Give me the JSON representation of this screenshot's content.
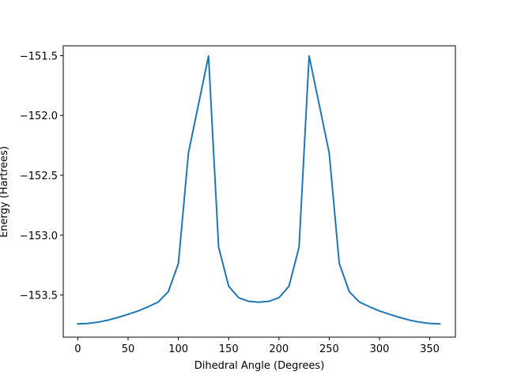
{
  "chart_data": {
    "type": "line",
    "title": "",
    "xlabel": "Dihedral Angle (Degrees)",
    "ylabel": "Energy (Hartrees)",
    "xlim": [
      -14.5,
      375.5
    ],
    "ylim": [
      -153.852,
      -151.418
    ],
    "xticks": [
      0,
      50,
      100,
      150,
      200,
      250,
      300,
      350
    ],
    "yticks": [
      -153.5,
      -153.0,
      -152.5,
      -152.0,
      -151.5
    ],
    "xtick_labels": [
      "0",
      "50",
      "100",
      "150",
      "200",
      "250",
      "300",
      "350"
    ],
    "ytick_labels": [
      "−153.5",
      "−153.0",
      "−152.5",
      "−152.0",
      "−151.5"
    ],
    "grid": false,
    "series": [
      {
        "color": "#1f77b4",
        "x": [
          0,
          10,
          20,
          30,
          40,
          50,
          60,
          70,
          80,
          90,
          100,
          110,
          120,
          130,
          140,
          150,
          160,
          170,
          180,
          190,
          200,
          210,
          220,
          230,
          240,
          250,
          260,
          270,
          280,
          290,
          300,
          310,
          320,
          330,
          340,
          350,
          360
        ],
        "y": [
          -153.741,
          -153.737,
          -153.727,
          -153.71,
          -153.687,
          -153.661,
          -153.633,
          -153.598,
          -153.558,
          -153.472,
          -153.237,
          -152.313,
          -151.907,
          -151.503,
          -153.1,
          -153.426,
          -153.523,
          -153.553,
          -153.56,
          -153.553,
          -153.523,
          -153.426,
          -153.1,
          -151.503,
          -151.907,
          -152.313,
          -153.237,
          -153.472,
          -153.558,
          -153.598,
          -153.633,
          -153.661,
          -153.687,
          -153.71,
          -153.727,
          -153.737,
          -153.741
        ]
      }
    ]
  }
}
